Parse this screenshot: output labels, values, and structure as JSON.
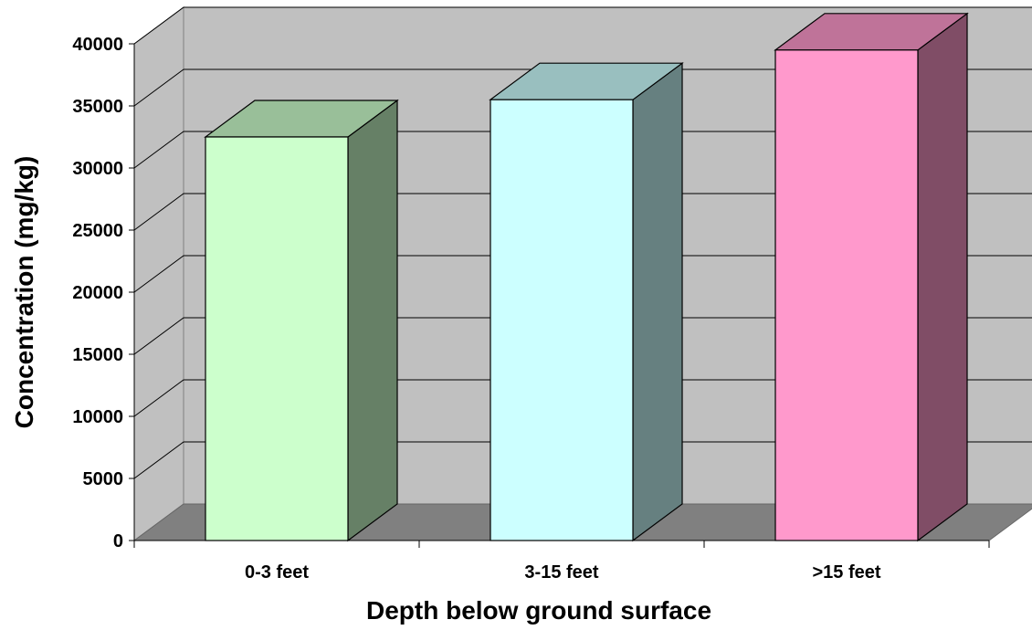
{
  "chart_data": {
    "type": "bar",
    "title": "",
    "xlabel": "Depth below ground surface",
    "ylabel": "Concentration (mg/kg)",
    "categories": [
      "0-3 feet",
      "3-15 feet",
      ">15 feet"
    ],
    "values": [
      32500,
      35500,
      39500
    ],
    "ylim": [
      0,
      40000
    ],
    "yticks": [
      0,
      5000,
      10000,
      15000,
      20000,
      25000,
      30000,
      35000,
      40000
    ],
    "grid": true,
    "style": "3d",
    "colors": {
      "wall": "#c0c0c0",
      "floor": "#808080",
      "gridline": "#000000",
      "bars": [
        {
          "front": "#ccffcc",
          "top": "#99bf99",
          "side": "#668066"
        },
        {
          "front": "#ccffff",
          "top": "#99bfbf",
          "side": "#668080"
        },
        {
          "front": "#ff99cc",
          "top": "#bf7399",
          "side": "#804d66"
        }
      ]
    }
  }
}
